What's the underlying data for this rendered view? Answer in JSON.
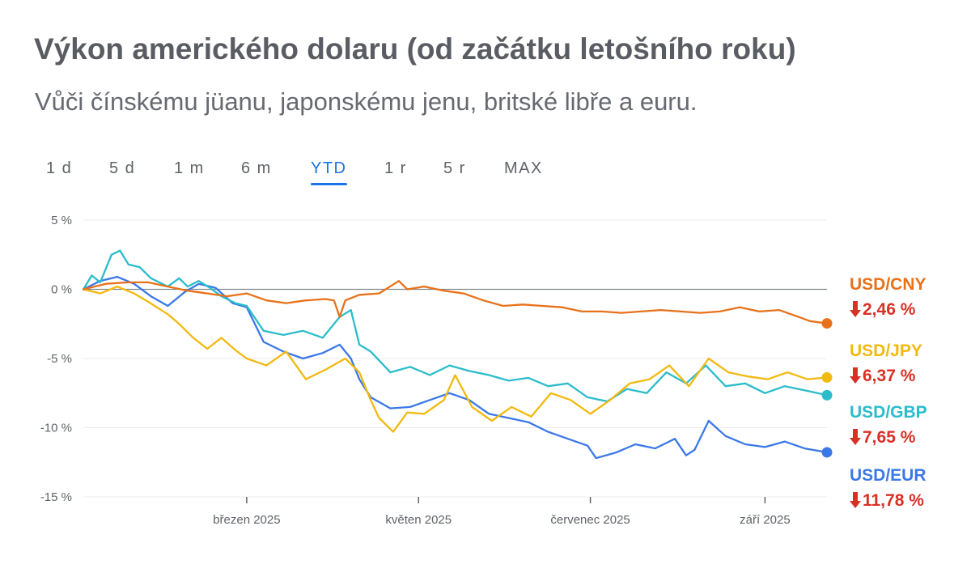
{
  "header": {
    "title": "Výkon amerického dolaru (od začátku letošního roku)",
    "subtitle": "Vůči čínskému jüanu, japonskému jenu, britské libře a euru."
  },
  "range_tabs": [
    {
      "label": "1 d",
      "active": false
    },
    {
      "label": "5 d",
      "active": false
    },
    {
      "label": "1 m",
      "active": false
    },
    {
      "label": "6 m",
      "active": false
    },
    {
      "label": "YTD",
      "active": true
    },
    {
      "label": "1 r",
      "active": false
    },
    {
      "label": "5 r",
      "active": false
    },
    {
      "label": "MAX",
      "active": false
    }
  ],
  "legend": [
    {
      "name": "USD/CNY",
      "change": "2,46 %",
      "color": "#e8711a",
      "icon": "arrow-down-icon"
    },
    {
      "name": "USD/JPY",
      "change": "6,37 %",
      "color": "#f2b90f",
      "icon": "arrow-down-icon"
    },
    {
      "name": "USD/GBP",
      "change": "7,65 %",
      "color": "#2bbccc",
      "icon": "arrow-down-icon"
    },
    {
      "name": "USD/EUR",
      "change": "11,78 %",
      "color": "#3b78e7",
      "icon": "arrow-down-icon"
    }
  ],
  "colors": {
    "accent": "#1a73e8",
    "negative": "#d93025",
    "text": "#5f6368",
    "baseline": "#80868b",
    "grid": "#ebebeb"
  },
  "chart_data": {
    "type": "line",
    "title": "Výkon amerického dolaru (od začátku letošního roku)",
    "subtitle": "Vůči čínskému jüanu, japonskému jenu, britské libře a euru.",
    "xlabel": "",
    "ylabel": "",
    "xlim": [
      "2025-01-02",
      "2025-09-23"
    ],
    "ylim": [
      -15,
      5
    ],
    "y_ticks": [
      5,
      0,
      -5,
      -10,
      -15
    ],
    "y_tick_labels": [
      "5 %",
      "0 %",
      "-5 %",
      "-10 %",
      "-15 %"
    ],
    "x_ticks": [
      "2025-03-01",
      "2025-05-01",
      "2025-07-01",
      "2025-09-01"
    ],
    "x_tick_labels": [
      "březen 2025",
      "květen 2025",
      "červenec 2025",
      "září 2025"
    ],
    "baseline": 0,
    "grid": true,
    "legend_position": "right",
    "series": [
      {
        "name": "USD/CNY",
        "color": "#e8711a",
        "points": [
          [
            "2025-01-02",
            0.0
          ],
          [
            "2025-01-10",
            0.4
          ],
          [
            "2025-01-18",
            0.5
          ],
          [
            "2025-01-25",
            0.5
          ],
          [
            "2025-02-01",
            0.2
          ],
          [
            "2025-02-08",
            -0.1
          ],
          [
            "2025-02-15",
            -0.3
          ],
          [
            "2025-02-22",
            -0.5
          ],
          [
            "2025-03-01",
            -0.3
          ],
          [
            "2025-03-08",
            -0.8
          ],
          [
            "2025-03-15",
            -1.0
          ],
          [
            "2025-03-22",
            -0.8
          ],
          [
            "2025-03-29",
            -0.7
          ],
          [
            "2025-04-01",
            -0.8
          ],
          [
            "2025-04-03",
            -2.0
          ],
          [
            "2025-04-05",
            -0.8
          ],
          [
            "2025-04-10",
            -0.4
          ],
          [
            "2025-04-17",
            -0.3
          ],
          [
            "2025-04-24",
            0.6
          ],
          [
            "2025-04-27",
            0.0
          ],
          [
            "2025-05-03",
            0.2
          ],
          [
            "2025-05-10",
            -0.1
          ],
          [
            "2025-05-17",
            -0.3
          ],
          [
            "2025-05-24",
            -0.8
          ],
          [
            "2025-05-31",
            -1.2
          ],
          [
            "2025-06-07",
            -1.1
          ],
          [
            "2025-06-14",
            -1.2
          ],
          [
            "2025-06-21",
            -1.3
          ],
          [
            "2025-06-28",
            -1.6
          ],
          [
            "2025-07-05",
            -1.6
          ],
          [
            "2025-07-12",
            -1.7
          ],
          [
            "2025-07-19",
            -1.6
          ],
          [
            "2025-07-26",
            -1.5
          ],
          [
            "2025-08-02",
            -1.6
          ],
          [
            "2025-08-09",
            -1.7
          ],
          [
            "2025-08-16",
            -1.6
          ],
          [
            "2025-08-23",
            -1.3
          ],
          [
            "2025-08-30",
            -1.6
          ],
          [
            "2025-09-06",
            -1.5
          ],
          [
            "2025-09-13",
            -2.0
          ],
          [
            "2025-09-17",
            -2.3
          ],
          [
            "2025-09-23",
            -2.46
          ]
        ]
      },
      {
        "name": "USD/JPY",
        "color": "#f2b90f",
        "points": [
          [
            "2025-01-02",
            0.0
          ],
          [
            "2025-01-08",
            -0.3
          ],
          [
            "2025-01-14",
            0.2
          ],
          [
            "2025-01-20",
            -0.3
          ],
          [
            "2025-01-25",
            -0.9
          ],
          [
            "2025-02-01",
            -1.8
          ],
          [
            "2025-02-05",
            -2.5
          ],
          [
            "2025-02-10",
            -3.5
          ],
          [
            "2025-02-15",
            -4.3
          ],
          [
            "2025-02-20",
            -3.5
          ],
          [
            "2025-02-25",
            -4.4
          ],
          [
            "2025-03-01",
            -5.0
          ],
          [
            "2025-03-08",
            -5.5
          ],
          [
            "2025-03-15",
            -4.5
          ],
          [
            "2025-03-22",
            -6.5
          ],
          [
            "2025-03-29",
            -5.8
          ],
          [
            "2025-04-05",
            -5.0
          ],
          [
            "2025-04-10",
            -6.0
          ],
          [
            "2025-04-14",
            -8.0
          ],
          [
            "2025-04-17",
            -9.3
          ],
          [
            "2025-04-22",
            -10.3
          ],
          [
            "2025-04-27",
            -8.9
          ],
          [
            "2025-05-03",
            -9.0
          ],
          [
            "2025-05-10",
            -8.0
          ],
          [
            "2025-05-14",
            -6.2
          ],
          [
            "2025-05-20",
            -8.5
          ],
          [
            "2025-05-27",
            -9.5
          ],
          [
            "2025-06-03",
            -8.5
          ],
          [
            "2025-06-10",
            -9.2
          ],
          [
            "2025-06-17",
            -7.5
          ],
          [
            "2025-06-24",
            -8.0
          ],
          [
            "2025-07-01",
            -9.0
          ],
          [
            "2025-07-08",
            -8.0
          ],
          [
            "2025-07-15",
            -6.8
          ],
          [
            "2025-07-22",
            -6.5
          ],
          [
            "2025-07-29",
            -5.5
          ],
          [
            "2025-08-05",
            -7.0
          ],
          [
            "2025-08-12",
            -5.0
          ],
          [
            "2025-08-19",
            -6.0
          ],
          [
            "2025-08-26",
            -6.3
          ],
          [
            "2025-09-02",
            -6.5
          ],
          [
            "2025-09-09",
            -6.0
          ],
          [
            "2025-09-16",
            -6.5
          ],
          [
            "2025-09-23",
            -6.37
          ]
        ]
      },
      {
        "name": "USD/GBP",
        "color": "#2bbccc",
        "points": [
          [
            "2025-01-02",
            0.0
          ],
          [
            "2025-01-05",
            1.0
          ],
          [
            "2025-01-08",
            0.5
          ],
          [
            "2025-01-12",
            2.5
          ],
          [
            "2025-01-15",
            2.8
          ],
          [
            "2025-01-18",
            1.8
          ],
          [
            "2025-01-22",
            1.6
          ],
          [
            "2025-01-26",
            0.8
          ],
          [
            "2025-02-01",
            0.2
          ],
          [
            "2025-02-05",
            0.8
          ],
          [
            "2025-02-08",
            0.2
          ],
          [
            "2025-02-12",
            0.6
          ],
          [
            "2025-02-16",
            0.1
          ],
          [
            "2025-02-20",
            -0.5
          ],
          [
            "2025-02-25",
            -1.0
          ],
          [
            "2025-03-01",
            -1.2
          ],
          [
            "2025-03-07",
            -3.0
          ],
          [
            "2025-03-14",
            -3.3
          ],
          [
            "2025-03-21",
            -3.0
          ],
          [
            "2025-03-28",
            -3.5
          ],
          [
            "2025-04-03",
            -2.0
          ],
          [
            "2025-04-07",
            -1.5
          ],
          [
            "2025-04-10",
            -4.0
          ],
          [
            "2025-04-14",
            -4.5
          ],
          [
            "2025-04-21",
            -6.0
          ],
          [
            "2025-04-28",
            -5.6
          ],
          [
            "2025-05-05",
            -6.2
          ],
          [
            "2025-05-12",
            -5.5
          ],
          [
            "2025-05-19",
            -5.9
          ],
          [
            "2025-05-26",
            -6.2
          ],
          [
            "2025-06-02",
            -6.6
          ],
          [
            "2025-06-09",
            -6.4
          ],
          [
            "2025-06-16",
            -7.0
          ],
          [
            "2025-06-23",
            -6.8
          ],
          [
            "2025-06-30",
            -7.8
          ],
          [
            "2025-07-07",
            -8.1
          ],
          [
            "2025-07-14",
            -7.2
          ],
          [
            "2025-07-21",
            -7.5
          ],
          [
            "2025-07-28",
            -6.0
          ],
          [
            "2025-08-04",
            -6.8
          ],
          [
            "2025-08-11",
            -5.5
          ],
          [
            "2025-08-18",
            -7.0
          ],
          [
            "2025-08-25",
            -6.8
          ],
          [
            "2025-09-01",
            -7.5
          ],
          [
            "2025-09-08",
            -7.0
          ],
          [
            "2025-09-15",
            -7.3
          ],
          [
            "2025-09-23",
            -7.65
          ]
        ]
      },
      {
        "name": "USD/EUR",
        "color": "#3b78e7",
        "points": [
          [
            "2025-01-02",
            0.0
          ],
          [
            "2025-01-08",
            0.6
          ],
          [
            "2025-01-14",
            0.9
          ],
          [
            "2025-01-20",
            0.4
          ],
          [
            "2025-01-26",
            -0.5
          ],
          [
            "2025-02-01",
            -1.2
          ],
          [
            "2025-02-07",
            -0.2
          ],
          [
            "2025-02-12",
            0.4
          ],
          [
            "2025-02-18",
            0.1
          ],
          [
            "2025-02-24",
            -1.0
          ],
          [
            "2025-03-01",
            -1.3
          ],
          [
            "2025-03-07",
            -3.8
          ],
          [
            "2025-03-14",
            -4.5
          ],
          [
            "2025-03-21",
            -5.0
          ],
          [
            "2025-03-28",
            -4.6
          ],
          [
            "2025-04-03",
            -4.0
          ],
          [
            "2025-04-07",
            -5.0
          ],
          [
            "2025-04-10",
            -6.5
          ],
          [
            "2025-04-14",
            -7.8
          ],
          [
            "2025-04-21",
            -8.6
          ],
          [
            "2025-04-28",
            -8.5
          ],
          [
            "2025-05-05",
            -8.0
          ],
          [
            "2025-05-12",
            -7.5
          ],
          [
            "2025-05-19",
            -8.0
          ],
          [
            "2025-05-26",
            -9.0
          ],
          [
            "2025-06-02",
            -9.3
          ],
          [
            "2025-06-09",
            -9.6
          ],
          [
            "2025-06-16",
            -10.3
          ],
          [
            "2025-06-23",
            -10.8
          ],
          [
            "2025-06-30",
            -11.3
          ],
          [
            "2025-07-03",
            -12.2
          ],
          [
            "2025-07-10",
            -11.8
          ],
          [
            "2025-07-17",
            -11.2
          ],
          [
            "2025-07-24",
            -11.5
          ],
          [
            "2025-07-31",
            -10.8
          ],
          [
            "2025-08-04",
            -12.0
          ],
          [
            "2025-08-07",
            -11.6
          ],
          [
            "2025-08-12",
            -9.5
          ],
          [
            "2025-08-18",
            -10.6
          ],
          [
            "2025-08-25",
            -11.2
          ],
          [
            "2025-09-01",
            -11.4
          ],
          [
            "2025-09-08",
            -11.0
          ],
          [
            "2025-09-15",
            -11.5
          ],
          [
            "2025-09-23",
            -11.78
          ]
        ]
      }
    ]
  }
}
